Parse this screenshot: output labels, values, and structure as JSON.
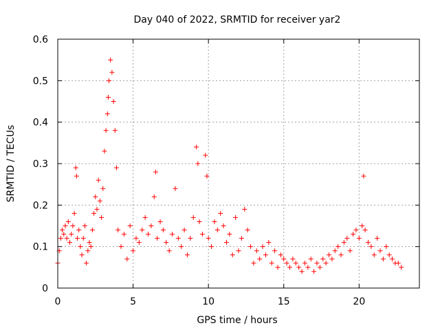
{
  "chart_data": {
    "type": "scatter",
    "title": "Day 040 of 2022, SRMTID for receiver yar2",
    "xlabel": "GPS time / hours",
    "ylabel": "SRMTID / TECUs",
    "xlim": [
      0,
      24
    ],
    "ylim": [
      0,
      0.6
    ],
    "xticks": [
      0,
      5,
      10,
      15,
      20
    ],
    "yticks": [
      0,
      0.1,
      0.2,
      0.3,
      0.4,
      0.5,
      0.6
    ],
    "xtick_labels": [
      "0",
      "5",
      "10",
      "15",
      "20"
    ],
    "ytick_labels": [
      "0",
      "0.1",
      "0.2",
      "0.3",
      "0.4",
      "0.5",
      "0.6"
    ],
    "grid": true,
    "marker": "+",
    "marker_color": "#ff0000",
    "series": [
      {
        "name": "yar2",
        "x": [
          0.0,
          0.1,
          0.2,
          0.3,
          0.4,
          0.5,
          0.6,
          0.7,
          0.8,
          0.9,
          1.0,
          1.1,
          1.2,
          1.25,
          1.3,
          1.4,
          1.5,
          1.6,
          1.7,
          1.8,
          1.9,
          2.0,
          2.1,
          2.2,
          2.3,
          2.4,
          2.5,
          2.6,
          2.7,
          2.8,
          2.9,
          3.0,
          3.1,
          3.2,
          3.3,
          3.35,
          3.4,
          3.5,
          3.6,
          3.7,
          3.8,
          3.9,
          4.0,
          4.2,
          4.4,
          4.6,
          4.8,
          5.0,
          5.2,
          5.4,
          5.6,
          5.8,
          6.0,
          6.2,
          6.4,
          6.5,
          6.6,
          6.8,
          7.0,
          7.2,
          7.4,
          7.6,
          7.8,
          8.0,
          8.2,
          8.4,
          8.6,
          8.8,
          9.0,
          9.2,
          9.3,
          9.4,
          9.6,
          9.8,
          9.9,
          10.0,
          10.2,
          10.4,
          10.6,
          10.8,
          11.0,
          11.2,
          11.4,
          11.6,
          11.8,
          12.0,
          12.2,
          12.4,
          12.6,
          12.8,
          13.0,
          13.2,
          13.4,
          13.6,
          13.8,
          14.0,
          14.2,
          14.4,
          14.6,
          14.8,
          15.0,
          15.2,
          15.4,
          15.6,
          15.8,
          16.0,
          16.2,
          16.4,
          16.6,
          16.8,
          17.0,
          17.2,
          17.4,
          17.6,
          17.8,
          18.0,
          18.2,
          18.4,
          18.6,
          18.8,
          19.0,
          19.2,
          19.4,
          19.6,
          19.8,
          20.0,
          20.2,
          20.3,
          20.4,
          20.6,
          20.8,
          21.0,
          21.2,
          21.4,
          21.6,
          21.8,
          22.0,
          22.2,
          22.4,
          22.6,
          22.8
        ],
        "y": [
          0.06,
          0.09,
          0.12,
          0.14,
          0.13,
          0.15,
          0.12,
          0.16,
          0.11,
          0.13,
          0.15,
          0.18,
          0.29,
          0.27,
          0.12,
          0.14,
          0.1,
          0.08,
          0.12,
          0.15,
          0.06,
          0.09,
          0.11,
          0.1,
          0.14,
          0.18,
          0.22,
          0.19,
          0.26,
          0.21,
          0.17,
          0.24,
          0.33,
          0.38,
          0.42,
          0.46,
          0.5,
          0.55,
          0.52,
          0.45,
          0.38,
          0.29,
          0.14,
          0.1,
          0.13,
          0.07,
          0.15,
          0.09,
          0.12,
          0.11,
          0.14,
          0.17,
          0.13,
          0.15,
          0.22,
          0.28,
          0.12,
          0.16,
          0.14,
          0.11,
          0.09,
          0.13,
          0.24,
          0.12,
          0.1,
          0.14,
          0.08,
          0.12,
          0.17,
          0.34,
          0.3,
          0.16,
          0.13,
          0.32,
          0.27,
          0.12,
          0.1,
          0.16,
          0.14,
          0.18,
          0.15,
          0.11,
          0.13,
          0.08,
          0.17,
          0.09,
          0.12,
          0.19,
          0.14,
          0.1,
          0.06,
          0.09,
          0.07,
          0.1,
          0.08,
          0.11,
          0.06,
          0.09,
          0.05,
          0.08,
          0.07,
          0.06,
          0.05,
          0.07,
          0.06,
          0.05,
          0.04,
          0.06,
          0.05,
          0.07,
          0.04,
          0.06,
          0.05,
          0.07,
          0.06,
          0.08,
          0.07,
          0.09,
          0.1,
          0.08,
          0.11,
          0.12,
          0.09,
          0.13,
          0.14,
          0.12,
          0.15,
          0.27,
          0.14,
          0.11,
          0.1,
          0.08,
          0.12,
          0.09,
          0.07,
          0.1,
          0.08,
          0.07,
          0.06,
          0.06,
          0.05
        ]
      }
    ]
  }
}
